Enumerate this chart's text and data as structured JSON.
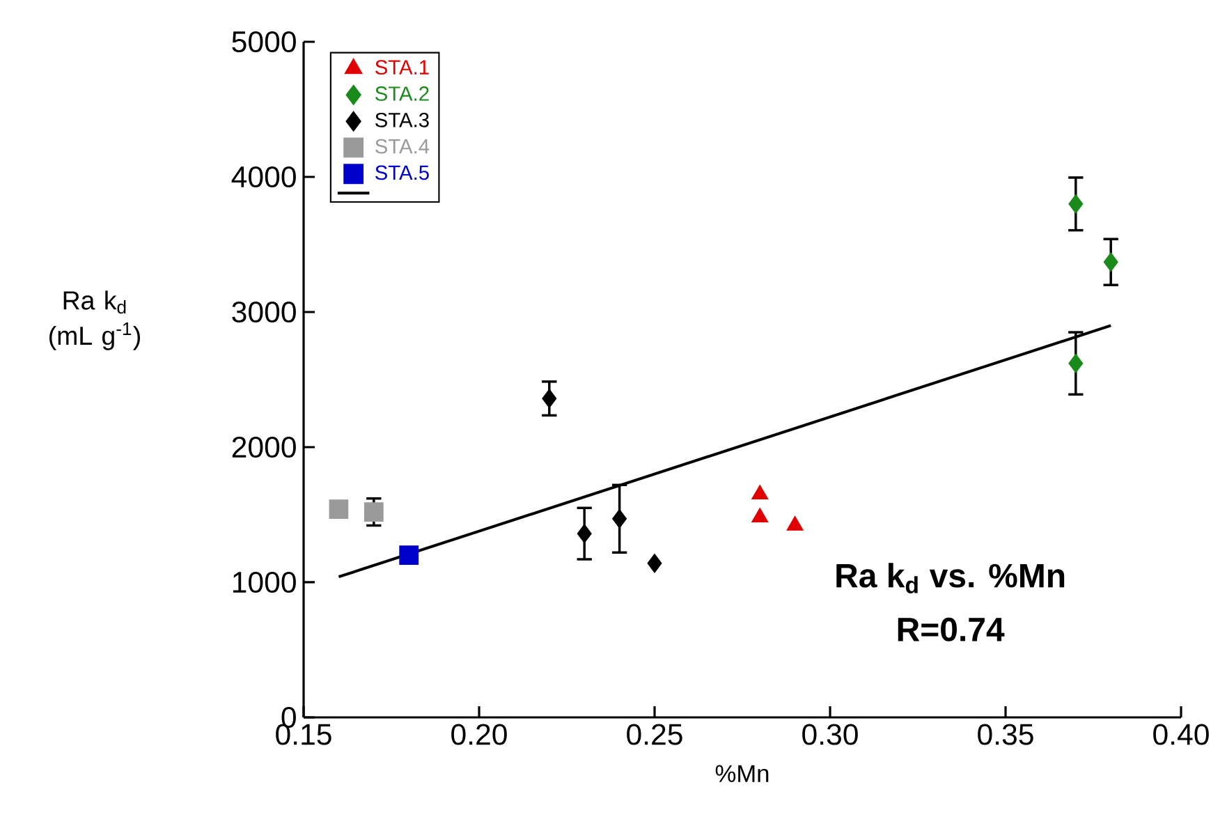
{
  "chart_data": {
    "type": "scatter",
    "xlabel": "%Mn",
    "ylabel": "Ra k$_{d}$ (mL g$^{-1}$)",
    "xlim": [
      0.15,
      0.4
    ],
    "ylim": [
      0,
      5000
    ],
    "xticks": [
      {
        "value": 0.15,
        "label": "0.15"
      },
      {
        "value": 0.2,
        "label": "0.20"
      },
      {
        "value": 0.25,
        "label": "0.25"
      },
      {
        "value": 0.3,
        "label": "0.30"
      },
      {
        "value": 0.35,
        "label": "0.35"
      },
      {
        "value": 0.4,
        "label": "0.40"
      }
    ],
    "yticks": [
      0,
      1000,
      2000,
      3000,
      4000,
      5000
    ],
    "legend": "top left",
    "grid": false,
    "annotations": [
      "Ra k$_{d}$ vs. %Mn",
      "R=0.74"
    ],
    "series": [
      {
        "name": "STA.1",
        "color": "#e00000",
        "marker": "triangle",
        "x": [
          0.28,
          0.28,
          0.29
        ],
        "values": [
          1650,
          1480,
          1420
        ]
      },
      {
        "name": "STA.2",
        "color": "#1a8a1a",
        "marker": "diamond",
        "x": [
          0.37,
          0.38,
          0.37
        ],
        "values": [
          3800,
          3370,
          2620
        ],
        "errors": [
          195,
          170,
          230
        ]
      },
      {
        "name": "STA.3",
        "color": "#000000",
        "marker": "diamond",
        "x": [
          0.22,
          0.23,
          0.24,
          0.25
        ],
        "values": [
          2360,
          1360,
          1470,
          1140
        ],
        "errors": [
          125,
          190,
          250,
          null
        ]
      },
      {
        "name": "STA.4",
        "color": "#9a9a9a",
        "marker": "square",
        "x": [
          0.16,
          0.17
        ],
        "values": [
          1540,
          1520
        ],
        "errors": [
          null,
          100
        ]
      },
      {
        "name": "STA.5",
        "color": "#0000cc",
        "marker": "square",
        "x": [
          0.18
        ],
        "values": [
          1200
        ]
      },
      {
        "type": "line",
        "color": "#000000",
        "line_style": "solid",
        "marker": "none",
        "x": [
          0.16,
          0.38
        ],
        "values": [
          1040,
          2900
        ]
      }
    ]
  }
}
